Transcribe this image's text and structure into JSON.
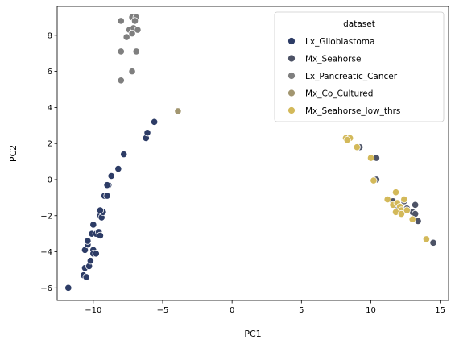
{
  "chart_data": {
    "type": "scatter",
    "xlabel": "PC1",
    "ylabel": "PC2",
    "xlim": [
      -12.6,
      15.6
    ],
    "ylim": [
      -6.7,
      9.6
    ],
    "xticks": [
      -10,
      -5,
      0,
      5,
      10,
      15
    ],
    "yticks": [
      -6,
      -4,
      -2,
      0,
      2,
      4,
      6,
      8
    ],
    "grid": false,
    "legend": {
      "title": "dataset",
      "placement": "top-right"
    },
    "series": [
      {
        "name": "Lx_Glioblastoma",
        "color": "#2d3c66",
        "points": [
          [
            -11.8,
            -6.0
          ],
          [
            -10.7,
            -5.3
          ],
          [
            -10.5,
            -5.4
          ],
          [
            -10.6,
            -4.9
          ],
          [
            -10.3,
            -4.8
          ],
          [
            -10.2,
            -4.5
          ],
          [
            -10.6,
            -3.9
          ],
          [
            -10.4,
            -3.6
          ],
          [
            -10.4,
            -3.4
          ],
          [
            -10.0,
            -3.9
          ],
          [
            -10.0,
            -4.1
          ],
          [
            -9.8,
            -4.1
          ],
          [
            -10.1,
            -3.0
          ],
          [
            -9.8,
            -3.0
          ],
          [
            -9.6,
            -2.9
          ],
          [
            -10.0,
            -2.5
          ],
          [
            -9.5,
            -3.1
          ],
          [
            -9.5,
            -2.0
          ],
          [
            -9.4,
            -2.1
          ],
          [
            -9.3,
            -1.8
          ],
          [
            -9.5,
            -1.7
          ],
          [
            -9.2,
            -0.9
          ],
          [
            -9.0,
            -0.9
          ],
          [
            -8.9,
            -0.3
          ],
          [
            -9.0,
            -0.3
          ],
          [
            -8.7,
            0.2
          ],
          [
            -8.2,
            0.6
          ],
          [
            -7.8,
            1.4
          ],
          [
            -6.2,
            2.3
          ],
          [
            -6.1,
            2.6
          ],
          [
            -5.6,
            3.2
          ]
        ]
      },
      {
        "name": "Mx_Seahorse",
        "color": "#4d5366",
        "points": [
          [
            9.2,
            1.8
          ],
          [
            10.4,
            1.2
          ],
          [
            10.4,
            0.0
          ],
          [
            11.6,
            -1.2
          ],
          [
            12.0,
            -1.5
          ],
          [
            12.4,
            -1.2
          ],
          [
            12.6,
            -1.6
          ],
          [
            13.0,
            -1.8
          ],
          [
            13.2,
            -1.4
          ],
          [
            13.2,
            -1.9
          ],
          [
            13.4,
            -2.3
          ],
          [
            14.5,
            -3.5
          ]
        ]
      },
      {
        "name": "Lx_Pancreatic_Cancer",
        "color": "#7f7f7f",
        "points": [
          [
            -8.0,
            8.8
          ],
          [
            -7.2,
            9.0
          ],
          [
            -6.9,
            9.0
          ],
          [
            -7.0,
            8.8
          ],
          [
            -7.4,
            8.3
          ],
          [
            -7.1,
            8.4
          ],
          [
            -6.8,
            8.3
          ],
          [
            -7.2,
            8.1
          ],
          [
            -7.6,
            7.9
          ],
          [
            -6.9,
            7.1
          ],
          [
            -8.0,
            7.1
          ],
          [
            -7.2,
            6.0
          ],
          [
            -8.0,
            5.5
          ]
        ]
      },
      {
        "name": "Mx_Co_Cultured",
        "color": "#a29670",
        "points": [
          [
            -3.9,
            3.8
          ]
        ]
      },
      {
        "name": "Mx_Seahorse_low_thrs",
        "color": "#d3b95a",
        "points": [
          [
            8.2,
            2.3
          ],
          [
            8.5,
            2.3
          ],
          [
            8.3,
            2.2
          ],
          [
            9.0,
            1.8
          ],
          [
            10.0,
            1.2
          ],
          [
            10.2,
            -0.05
          ],
          [
            11.2,
            -1.1
          ],
          [
            11.8,
            -0.7
          ],
          [
            11.6,
            -1.4
          ],
          [
            11.9,
            -1.3
          ],
          [
            12.1,
            -1.5
          ],
          [
            12.4,
            -1.1
          ],
          [
            12.2,
            -1.7
          ],
          [
            12.6,
            -1.7
          ],
          [
            11.8,
            -1.8
          ],
          [
            12.2,
            -1.9
          ],
          [
            13.0,
            -2.2
          ],
          [
            14.0,
            -3.3
          ]
        ]
      }
    ]
  }
}
